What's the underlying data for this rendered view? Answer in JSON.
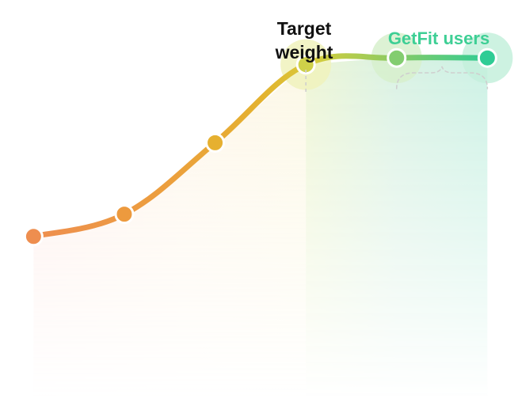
{
  "annotations": {
    "target_line1": "Target",
    "target_line2": "weight",
    "users": "GetFit users"
  },
  "colors": {
    "point_colors": [
      "#ee8e4f",
      "#ed9a3e",
      "#e6b030",
      "#cfd149",
      "#83cd70",
      "#2fcc95"
    ],
    "halo_colors": [
      "#f0f2bc",
      "#d7f0cc",
      "#c4f0dc"
    ],
    "label_dark": "#111111",
    "label_green": "#3ecf95",
    "dash": "#cfcfcf"
  },
  "chart_data": {
    "type": "line",
    "title": "",
    "xlabel": "",
    "ylabel": "",
    "x": [
      1,
      2,
      3,
      4,
      5,
      6
    ],
    "series": [
      {
        "values": [
          1.0,
          2.0,
          5.2,
          8.7,
          9.0,
          9.0
        ]
      }
    ],
    "ylim": [
      0,
      10
    ],
    "xlim": [
      0.7,
      6.25
    ],
    "grid": false,
    "legend": "none",
    "highlight_points": [
      4,
      5,
      6
    ]
  }
}
